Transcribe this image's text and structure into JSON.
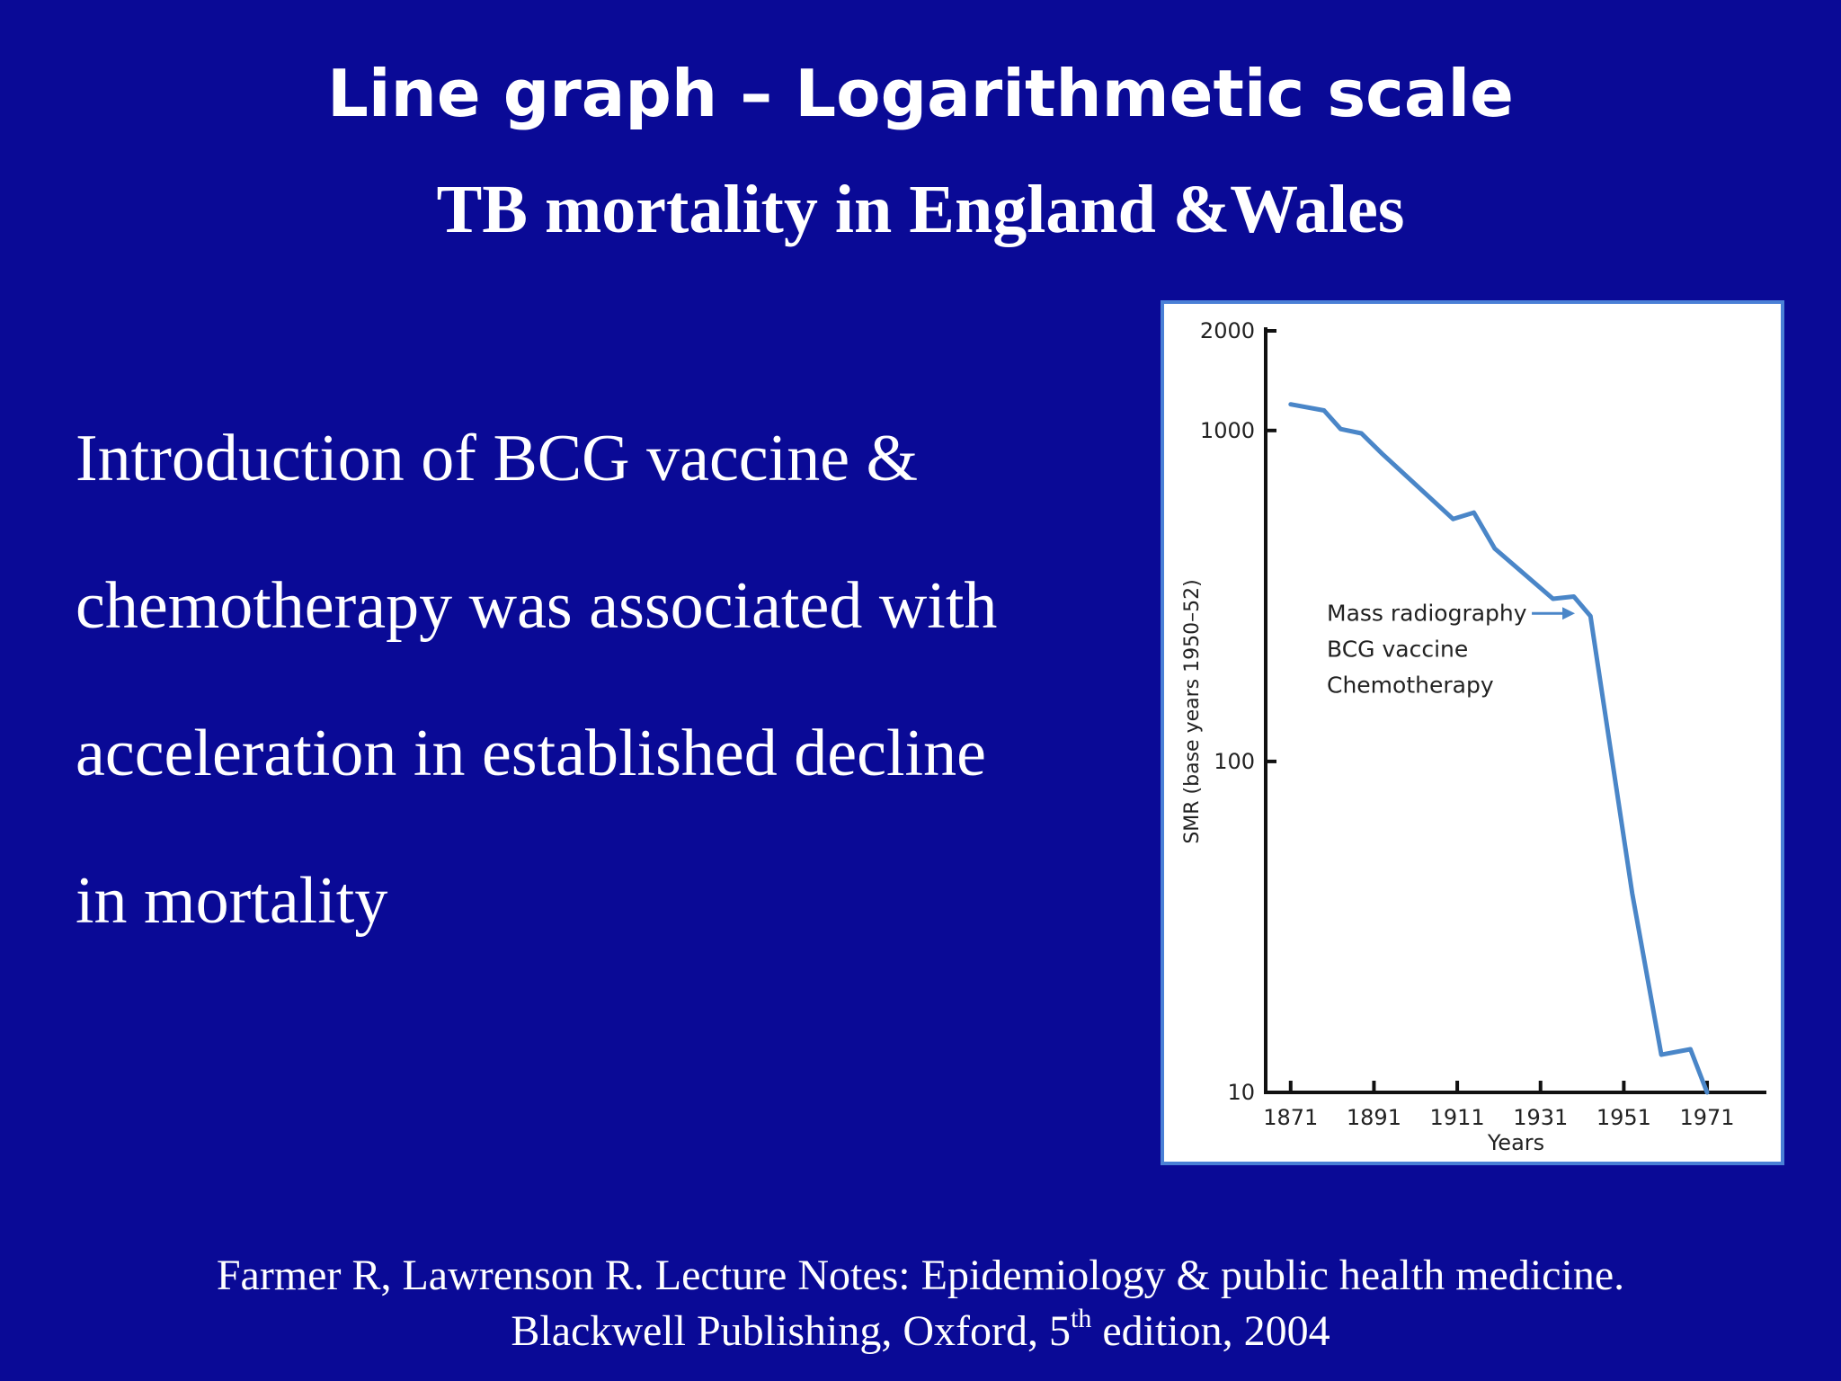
{
  "slide": {
    "title": "Line graph – Logarithmetic  scale",
    "subtitle": "TB mortality in England &Wales",
    "body_lines": [
      "Introduction of BCG vaccine &",
      "chemotherapy was associated with",
      "acceleration in established decline",
      "in mortality"
    ],
    "citation": {
      "line1": "Farmer R,  Lawrenson R. Lecture Notes: Epidemiology & public health medicine.",
      "line2_before": "Blackwell Publishing, Oxford, 5",
      "line2_sup": "th",
      "line2_after": " edition, 2004"
    },
    "colors": {
      "background": "#0a0a96",
      "text": "#ffffff",
      "chart_line": "#4a86c8",
      "chart_border": "#4a80d6"
    }
  },
  "chart_data": {
    "type": "line",
    "y_scale": "log",
    "xlabel": "Years",
    "ylabel": "SMR (base years 1950–52)",
    "ylim": [
      10,
      2000
    ],
    "xlim": [
      1865,
      1982
    ],
    "x_ticks": [
      1871,
      1891,
      1911,
      1931,
      1951,
      1971
    ],
    "y_ticks": [
      10,
      100,
      1000,
      2000
    ],
    "series": [
      {
        "x": [
          1871,
          1879,
          1883,
          1888,
          1893,
          1910,
          1915,
          1920,
          1934,
          1939,
          1943,
          1953,
          1960,
          1967,
          1971
        ],
        "y": [
          1200,
          1150,
          1010,
          980,
          850,
          540,
          565,
          440,
          310,
          315,
          275,
          40,
          13,
          13.5,
          10
        ]
      }
    ],
    "annotation": {
      "lines": [
        "Mass radiography",
        "BCG vaccine",
        "Chemotherapy"
      ],
      "x": 1941,
      "y": 280
    }
  }
}
